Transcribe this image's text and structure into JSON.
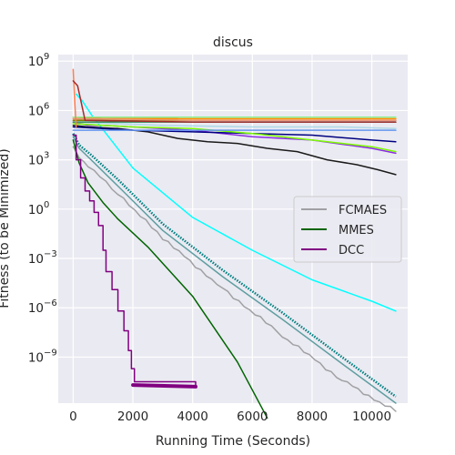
{
  "chart_data": {
    "type": "line",
    "title": "discus",
    "xlabel": "Running Time (Seconds)",
    "ylabel": "Fitness (to be Minimized)",
    "xlim": [
      -500,
      11200
    ],
    "ylim_log10": [
      -11.8,
      9.4
    ],
    "yscale": "log",
    "grid": true,
    "background": "#eaeaf2",
    "legend_position": "center-right",
    "x_ticks": [
      {
        "value": 0,
        "label": "0"
      },
      {
        "value": 2000,
        "label": "2000"
      },
      {
        "value": 4000,
        "label": "4000"
      },
      {
        "value": 6000,
        "label": "6000"
      },
      {
        "value": 8000,
        "label": "8000"
      },
      {
        "value": 10000,
        "label": "10000"
      }
    ],
    "y_ticks": [
      {
        "exp": 9,
        "base": "10",
        "sup": "9"
      },
      {
        "exp": 6,
        "base": "10",
        "sup": "6"
      },
      {
        "exp": 3,
        "base": "10",
        "sup": "3"
      },
      {
        "exp": 0,
        "base": "10",
        "sup": "0"
      },
      {
        "exp": -3,
        "base": "10",
        "sup": "−3"
      },
      {
        "exp": -6,
        "base": "10",
        "sup": "−6"
      },
      {
        "exp": -9,
        "base": "10",
        "sup": "−9"
      }
    ],
    "legend": [
      {
        "name": "FCMAES",
        "color": "#a0a0a4"
      },
      {
        "name": "MMES",
        "color": "#006400"
      },
      {
        "name": "DCC",
        "color": "#800080"
      }
    ],
    "series": [
      {
        "color": "#00ffff",
        "width": 1.5,
        "x": [
          100,
          300,
          700,
          800,
          2000,
          4000,
          6000,
          8000,
          10000,
          10800
        ],
        "log10_y": [
          7.0,
          6.6,
          5.5,
          5.3,
          2.5,
          -0.5,
          -2.5,
          -4.3,
          -5.6,
          -6.2
        ]
      },
      {
        "color": "#008080",
        "width": 1.5,
        "dotted": true,
        "x": [
          0,
          200,
          600,
          1500,
          3000,
          5000,
          7000,
          9000,
          10800
        ],
        "log10_y": [
          4.6,
          3.9,
          3.3,
          1.8,
          -0.9,
          -3.7,
          -6.3,
          -9.0,
          -11.4
        ]
      },
      {
        "color": "#5f9ea0",
        "width": 1.5,
        "x": [
          0,
          200,
          600,
          1500,
          3000,
          5000,
          7000,
          9000,
          10800
        ],
        "log10_y": [
          4.4,
          3.7,
          3.0,
          1.4,
          -1.3,
          -4.1,
          -6.7,
          -9.4,
          -11.8
        ]
      },
      {
        "color": "#a0a0a4",
        "width": 1.5,
        "jagged": true,
        "x": [
          0,
          200,
          500,
          1500,
          3000,
          5000,
          7000,
          9000,
          10800
        ],
        "log10_y": [
          3.8,
          3.2,
          2.6,
          1.0,
          -1.8,
          -4.8,
          -7.7,
          -10.4,
          -12.3
        ]
      },
      {
        "color": "#006400",
        "width": 1.5,
        "x": [
          0,
          200,
          500,
          1000,
          1500,
          2500,
          4000,
          5500,
          6500
        ],
        "log10_y": [
          4.2,
          2.8,
          1.6,
          0.4,
          -0.6,
          -2.3,
          -5.3,
          -9.3,
          -12.7
        ]
      },
      {
        "color": "#800080",
        "width": 1.5,
        "step": true,
        "x": [
          0,
          100,
          250,
          400,
          550,
          700,
          850,
          1000,
          1100,
          1300,
          1500,
          1700,
          1850,
          1950,
          2050,
          4100
        ],
        "log10_y": [
          4.5,
          3.0,
          1.9,
          1.1,
          0.5,
          -0.2,
          -1.0,
          -2.5,
          -3.8,
          -4.9,
          -6.2,
          -7.4,
          -8.6,
          -9.7,
          -10.5,
          -10.8
        ]
      },
      {
        "color": "#800080",
        "width": 4,
        "x": [
          2000,
          4100
        ],
        "log10_y": [
          -10.7,
          -10.8
        ]
      },
      {
        "color": "#1a1a1a",
        "width": 1.5,
        "x": [
          0,
          500,
          1500,
          2500,
          3500,
          4500,
          5500,
          6500,
          7500,
          8500,
          9500,
          10200,
          10800
        ],
        "log10_y": [
          5.1,
          5.0,
          4.9,
          4.7,
          4.3,
          4.1,
          4.0,
          3.7,
          3.5,
          3.0,
          2.7,
          2.4,
          2.1
        ]
      },
      {
        "color": "#8a2be2",
        "width": 1.5,
        "x": [
          0,
          500,
          1000,
          2000,
          4000,
          6000,
          8000,
          10000,
          10800
        ],
        "log10_y": [
          5.3,
          5.1,
          5.1,
          5.0,
          4.8,
          4.4,
          4.2,
          3.7,
          3.4
        ]
      },
      {
        "color": "#000080",
        "width": 1.5,
        "x": [
          0,
          1000,
          2000,
          4000,
          6000,
          8000,
          10000,
          10800
        ],
        "log10_y": [
          5.0,
          4.9,
          4.8,
          4.7,
          4.6,
          4.5,
          4.2,
          4.1
        ]
      },
      {
        "color": "#7cfc00",
        "width": 1.5,
        "x": [
          0,
          1000,
          2000,
          4000,
          6000,
          8000,
          10000,
          10800
        ],
        "log10_y": [
          5.2,
          5.1,
          5.0,
          4.9,
          4.6,
          4.2,
          3.8,
          3.5
        ]
      },
      {
        "color": "#add8e6",
        "width": 1.5,
        "x": [
          0,
          1500,
          3000,
          6000,
          9000,
          10800
        ],
        "log10_y": [
          5.3,
          5.2,
          5.1,
          5.0,
          5.0,
          4.9
        ]
      },
      {
        "color": "#6495ed",
        "width": 1.5,
        "x": [
          0,
          2000,
          4000,
          6000,
          8000,
          10800
        ],
        "log10_y": [
          4.8,
          4.8,
          4.8,
          4.8,
          4.8,
          4.8
        ]
      },
      {
        "color": "#d2691e",
        "width": 1.5,
        "x": [
          0,
          1000,
          2000,
          3500
        ],
        "log10_y": [
          5.6,
          5.5,
          5.5,
          5.5
        ]
      },
      {
        "color": "#808000",
        "width": 1.5,
        "x": [
          0,
          4000,
          8000,
          10800
        ],
        "log10_y": [
          5.4,
          5.4,
          5.4,
          5.4
        ]
      },
      {
        "color": "#ff8c00",
        "width": 1.5,
        "x": [
          0,
          4000,
          8000,
          10800
        ],
        "log10_y": [
          5.5,
          5.5,
          5.5,
          5.5
        ]
      },
      {
        "color": "#2e8b57",
        "width": 1.5,
        "x": [
          0,
          4000,
          8000,
          10800
        ],
        "log10_y": [
          5.3,
          5.3,
          5.3,
          5.3
        ]
      },
      {
        "color": "#e9967a",
        "width": 1.5,
        "x": [
          0,
          4000,
          8000,
          10800
        ],
        "log10_y": [
          5.5,
          5.4,
          5.4,
          5.4
        ]
      },
      {
        "color": "#90ee90",
        "width": 1.5,
        "x": [
          0,
          4000,
          8000,
          10800
        ],
        "log10_y": [
          5.6,
          5.6,
          5.6,
          5.6
        ]
      },
      {
        "color": "#ff7f50",
        "width": 1.5,
        "x": [
          0,
          40,
          100
        ],
        "log10_y": [
          8.5,
          7.0,
          5.0
        ]
      },
      {
        "color": "#a52a2a",
        "width": 1.5,
        "x": [
          0,
          150,
          400,
          4000,
          8000,
          10800
        ],
        "log10_y": [
          7.8,
          7.5,
          5.4,
          5.3,
          5.3,
          5.3
        ]
      }
    ]
  }
}
